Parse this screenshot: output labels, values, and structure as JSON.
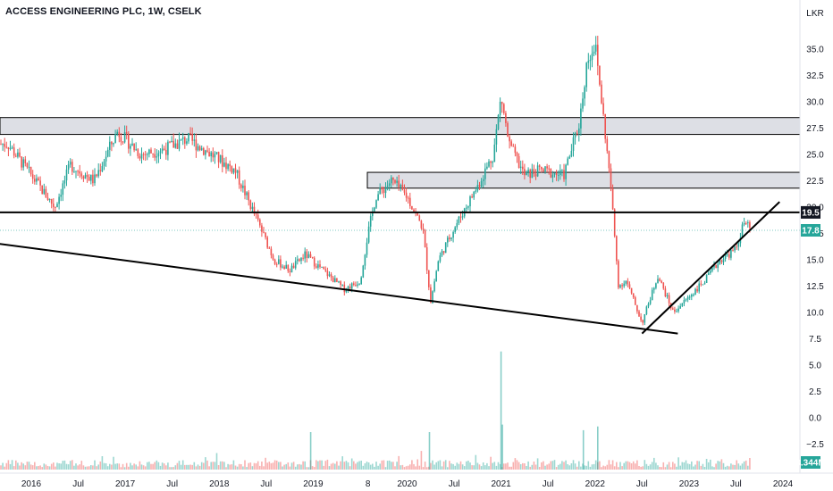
{
  "header": {
    "title": "ACCESS ENGINEERING PLC, 1W, CSELK"
  },
  "currency_label": "LKR",
  "chart_data": {
    "type": "candlestick",
    "title": "ACCESS ENGINEERING PLC, 1W, CSELK",
    "y_axis": {
      "unit": "LKR",
      "ticks": [
        "35.0",
        "32.5",
        "30.0",
        "27.5",
        "25.0",
        "22.5",
        "20.0",
        "17.5",
        "15.0",
        "12.5",
        "10.0",
        "7.5",
        "5.0",
        "2.5",
        "0.0",
        "−2.5"
      ],
      "price_range": [
        7.5,
        35.0
      ]
    },
    "x_axis": {
      "ticks": [
        "2016",
        "Jul",
        "2017",
        "Jul",
        "2018",
        "Jul",
        "2019",
        "8",
        "2020",
        "Jul",
        "2021",
        "Jul",
        "2022",
        "Jul",
        "2023",
        "Jul",
        "2024"
      ]
    },
    "price_path": [
      [
        "2015-10",
        26.0
      ],
      [
        "2016-01",
        23.0
      ],
      [
        "2016-04",
        20.0
      ],
      [
        "2016-06",
        24.0
      ],
      [
        "2016-09",
        22.5
      ],
      [
        "2016-12",
        27.2
      ],
      [
        "2017-03",
        25.0
      ],
      [
        "2017-06",
        25.5
      ],
      [
        "2017-09",
        26.5
      ],
      [
        "2017-12",
        25.0
      ],
      [
        "2018-03",
        23.5
      ],
      [
        "2018-06",
        18.5
      ],
      [
        "2018-08",
        15.0
      ],
      [
        "2018-10",
        14.0
      ],
      [
        "2018-12",
        15.5
      ],
      [
        "2019-03",
        13.5
      ],
      [
        "2019-05",
        12.2
      ],
      [
        "2019-07",
        13.0
      ],
      [
        "2019-08",
        17.5
      ],
      [
        "2019-09",
        21.0
      ],
      [
        "2019-11",
        22.5
      ],
      [
        "2020-01",
        21.0
      ],
      [
        "2020-03",
        18.0
      ],
      [
        "2020-04",
        11.0
      ],
      [
        "2020-05",
        15.0
      ],
      [
        "2020-07",
        18.0
      ],
      [
        "2020-10",
        22.0
      ],
      [
        "2020-12",
        25.0
      ],
      [
        "2021-01",
        30.5
      ],
      [
        "2021-02",
        26.0
      ],
      [
        "2021-04",
        23.0
      ],
      [
        "2021-06",
        23.5
      ],
      [
        "2021-09",
        23.0
      ],
      [
        "2021-11",
        28.0
      ],
      [
        "2021-12",
        34.0
      ],
      [
        "2022-01",
        35.5
      ],
      [
        "2022-02",
        29.0
      ],
      [
        "2022-03",
        22.0
      ],
      [
        "2022-04",
        12.5
      ],
      [
        "2022-05",
        13.0
      ],
      [
        "2022-07",
        9.0
      ],
      [
        "2022-09",
        13.5
      ],
      [
        "2022-11",
        10.0
      ],
      [
        "2023-01",
        11.5
      ],
      [
        "2023-03",
        13.0
      ],
      [
        "2023-05",
        15.0
      ],
      [
        "2023-07",
        16.0
      ],
      [
        "2023-08",
        18.5
      ],
      [
        "2023-09",
        17.8
      ]
    ],
    "volume_spikes": [
      [
        "2021-01",
        6.3
      ],
      [
        "2021-01",
        2.4
      ],
      [
        "2022-01",
        2.3
      ],
      [
        "2021-11",
        2.1
      ],
      [
        "2018-12",
        2.0
      ],
      [
        "2020-03",
        2.0
      ]
    ],
    "price_tags": [
      {
        "label": "19.5",
        "value": 19.5,
        "color": "#131722"
      },
      {
        "label": "17.8",
        "value": 17.8,
        "color": "#26a69a"
      },
      {
        "label": "3.344M",
        "value": -3.6,
        "color": "#26a69a"
      }
    ],
    "resistance_zones": [
      [
        26.9,
        28.5
      ],
      [
        21.8,
        23.3
      ]
    ],
    "horizontal_lines": [
      19.5
    ],
    "trend_lines": [
      {
        "from": [
          "2015-10",
          16.8
        ],
        "to": [
          "2022-11",
          8.0
        ]
      },
      {
        "from": [
          "2022-11",
          8.0
        ],
        "to": [
          "2023-12",
          20.5
        ]
      }
    ],
    "colors": {
      "up": "#26a69a",
      "down": "#ef5350",
      "zone": "#d1d4dc",
      "line": "#000000"
    },
    "grid": false
  }
}
